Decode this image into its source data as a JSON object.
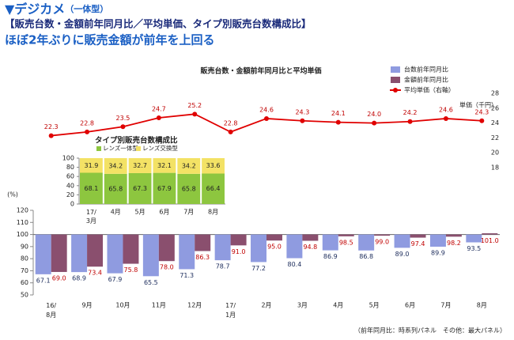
{
  "header": {
    "title": "▼デジカメ",
    "title_note": "（一体型）",
    "subtitle": "【販売台数・金額前年同月比／平均単価、タイプ別販売台数構成比】",
    "headline": "ほぼ2年ぶりに販売金額が前年を上回る"
  },
  "chart_data": [
    {
      "type": "bar",
      "title": "販売台数・金額前年同月比と平均単価",
      "y_label": "(%)",
      "y2_label": "単価（千円）",
      "categories": [
        "16/\n8月",
        "9月",
        "10月",
        "11月",
        "12月",
        "17/\n1月",
        "2月",
        "3月",
        "4月",
        "5月",
        "6月",
        "7月",
        "8月"
      ],
      "series": [
        {
          "name": "台数前年同月比",
          "color": "#8f9be0",
          "values": [
            67.1,
            68.9,
            67.9,
            65.5,
            71.3,
            78.7,
            77.2,
            80.4,
            86.9,
            86.8,
            89.0,
            89.9,
            93.5
          ],
          "value_labels": [
            "67.1",
            "68.9",
            "67.9",
            "65.5",
            "71.3",
            "78.7",
            "77.2",
            "80.4",
            "86.9",
            "86.8",
            "89.0",
            "89.9",
            "93.5"
          ]
        },
        {
          "name": "金額前年同月比",
          "color": "#8a4f6e",
          "values": [
            69.0,
            73.4,
            75.8,
            78.0,
            86.3,
            91.0,
            95.0,
            94.8,
            98.5,
            99.0,
            97.4,
            98.2,
            101.0
          ],
          "value_labels": [
            "69.0",
            "73.4",
            "75.8",
            "78.0",
            "86.3",
            "91.0",
            "95.0",
            "94.8",
            "98.5",
            "99.0",
            "97.4",
            "98.2",
            "101.0"
          ]
        },
        {
          "name": "平均単価（右軸）",
          "color": "#e00000",
          "type": "line",
          "axis": "y2",
          "values": [
            22.3,
            22.8,
            23.5,
            24.7,
            25.2,
            22.8,
            24.6,
            24.3,
            24.1,
            24.0,
            24.2,
            24.6,
            24.3
          ],
          "value_labels": [
            "22.3",
            "22.8",
            "23.5",
            "24.7",
            "25.2",
            "22.8",
            "24.6",
            "24.3",
            "24.1",
            "24.0",
            "24.2",
            "24.6",
            "24.3"
          ]
        }
      ],
      "ylim": [
        50,
        120
      ],
      "yticks": [
        50,
        60,
        70,
        80,
        90,
        100,
        110,
        120
      ],
      "baseline": 100,
      "y2lim": [
        18,
        28
      ],
      "y2ticks": [
        18,
        20,
        22,
        24,
        26,
        28
      ],
      "legend": "upper right",
      "grid": false
    },
    {
      "type": "stacked_bar",
      "title": "タイプ別販売台数構成比",
      "categories": [
        "17/\n3月",
        "4月",
        "5月",
        "6月",
        "7月",
        "8月"
      ],
      "series": [
        {
          "name": "レンズ一体型",
          "color": "#8dc63f",
          "values": [
            68.1,
            65.8,
            67.3,
            67.9,
            65.8,
            66.4
          ]
        },
        {
          "name": "レンズ交換型",
          "color": "#f3e265",
          "values": [
            31.9,
            34.2,
            32.7,
            32.1,
            34.2,
            33.6
          ]
        }
      ],
      "ylim": [
        0,
        100
      ],
      "yticks": [
        0,
        20,
        40,
        60,
        80,
        100
      ],
      "legend": "upper left"
    }
  ],
  "footnote": "（前年同月比：時系列パネル　その他：最大パネル）"
}
